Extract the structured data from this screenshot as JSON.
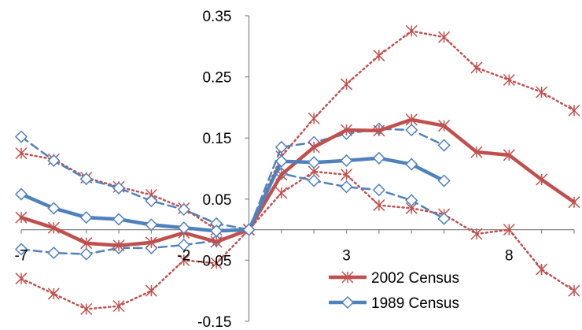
{
  "chart_data": {
    "type": "line",
    "title": "",
    "xlabel": "",
    "ylabel": "",
    "x": [
      -7,
      -6,
      -5,
      -4,
      -3,
      -2,
      -1,
      0,
      1,
      2,
      3,
      4,
      5,
      6,
      7,
      8,
      9,
      10
    ],
    "xlim": [
      -7,
      10
    ],
    "ylim": [
      -0.15,
      0.35
    ],
    "x_ticks": [
      -7,
      -2,
      3,
      8
    ],
    "x_tick_labels": [
      "-7",
      "-2",
      "3",
      "8"
    ],
    "y_ticks": [
      -0.15,
      -0.05,
      0.05,
      0.15,
      0.25,
      0.35
    ],
    "y_tick_labels": [
      "-0.15",
      "-0.05",
      "0.05",
      "0.15",
      "0.25",
      "0.35"
    ],
    "grid": false,
    "legend": {
      "placement": "bottom-right",
      "entries": [
        "2002 Census",
        "1989 Census"
      ]
    },
    "series": [
      {
        "name": "2002 Census",
        "role": "estimate",
        "color": "#C0504D",
        "marker": "star",
        "values": [
          0.02,
          0.003,
          -0.022,
          -0.026,
          -0.021,
          -0.005,
          -0.02,
          0,
          0.09,
          0.135,
          0.163,
          0.162,
          0.18,
          0.17,
          0.127,
          0.122,
          0.082,
          0.045
        ]
      },
      {
        "name": "",
        "role": "upper",
        "color": "#C0504D",
        "marker": "star",
        "values": [
          0.125,
          0.115,
          0.085,
          0.07,
          0.057,
          0.035,
          -0.0,
          0,
          0.12,
          0.182,
          0.238,
          0.285,
          0.325,
          0.315,
          0.265,
          0.245,
          0.225,
          0.195
        ]
      },
      {
        "name": "",
        "role": "lower",
        "color": "#C0504D",
        "marker": "star",
        "values": [
          -0.08,
          -0.105,
          -0.13,
          -0.125,
          -0.1,
          -0.05,
          -0.055,
          0,
          0.06,
          0.095,
          0.09,
          0.04,
          0.035,
          0.025,
          -0.007,
          -0.0,
          -0.065,
          -0.1
        ]
      },
      {
        "name": "1989 Census",
        "role": "estimate",
        "color": "#4F81BD",
        "marker": "diamond",
        "x": [
          -7,
          -6,
          -5,
          -4,
          -3,
          -2,
          -1,
          0,
          1,
          2,
          3,
          4,
          5,
          6
        ],
        "values": [
          0.058,
          0.035,
          0.02,
          0.017,
          0.008,
          0.003,
          -0.002,
          0,
          0.112,
          0.11,
          0.113,
          0.117,
          0.107,
          0.08
        ]
      },
      {
        "name": "",
        "role": "upper",
        "color": "#4F81BD",
        "marker": "diamond",
        "x": [
          -7,
          -6,
          -5,
          -4,
          -3,
          -2,
          -1,
          0,
          1,
          2,
          3,
          4,
          5,
          6
        ],
        "values": [
          0.152,
          0.113,
          0.083,
          0.068,
          0.047,
          0.033,
          0.01,
          0,
          0.135,
          0.143,
          0.157,
          0.165,
          0.163,
          0.138
        ]
      },
      {
        "name": "",
        "role": "lower",
        "color": "#4F81BD",
        "marker": "diamond",
        "x": [
          -7,
          -6,
          -5,
          -4,
          -3,
          -2,
          -1,
          0,
          1,
          2,
          3,
          4,
          5,
          6
        ],
        "values": [
          -0.032,
          -0.038,
          -0.04,
          -0.03,
          -0.03,
          -0.025,
          -0.018,
          0,
          0.092,
          0.08,
          0.07,
          0.065,
          0.048,
          0.018
        ]
      }
    ]
  }
}
